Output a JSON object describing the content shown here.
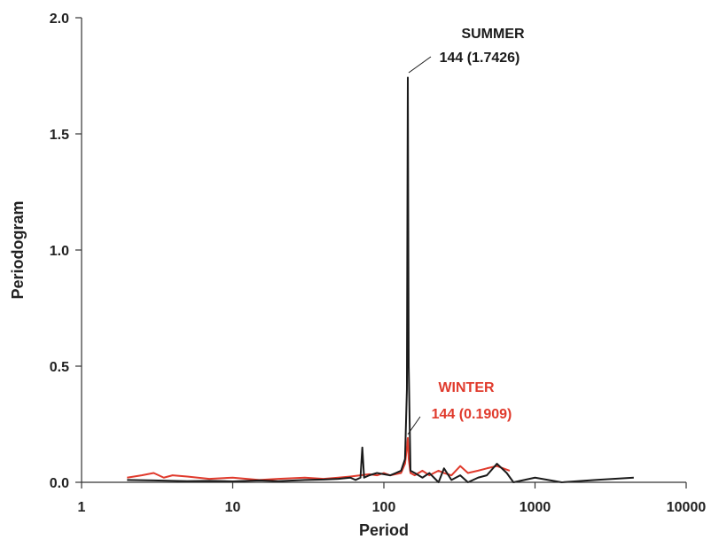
{
  "chart_data": {
    "type": "line",
    "xlabel": "Period",
    "ylabel": "Periodogram",
    "x_scale": "log",
    "xlim": [
      1,
      10000
    ],
    "ylim": [
      0,
      2.0
    ],
    "x_ticks": [
      1,
      10,
      100,
      1000,
      10000
    ],
    "x_tick_labels": [
      "1",
      "10",
      "100",
      "1000",
      "10000"
    ],
    "y_ticks": [
      0,
      0.5,
      1.0,
      1.5,
      2.0
    ],
    "y_tick_labels": [
      "0.0",
      "0.5",
      "1.0",
      "1.5",
      "2.0"
    ],
    "grid": false,
    "series": [
      {
        "name": "SUMMER",
        "color": "#1a1a1a",
        "x": [
          2,
          3,
          4,
          5,
          7,
          10,
          15,
          20,
          30,
          40,
          50,
          60,
          65,
          70,
          72,
          74,
          80,
          90,
          100,
          110,
          120,
          130,
          138,
          142,
          144,
          146,
          150,
          160,
          180,
          200,
          230,
          250,
          280,
          320,
          360,
          420,
          480,
          560,
          650,
          720,
          1000,
          1500,
          2500,
          4500
        ],
        "y": [
          0.01,
          0.008,
          0.006,
          0.005,
          0.006,
          0.004,
          0.008,
          0.005,
          0.01,
          0.012,
          0.015,
          0.02,
          0.01,
          0.02,
          0.15,
          0.02,
          0.03,
          0.04,
          0.035,
          0.03,
          0.04,
          0.05,
          0.1,
          0.4,
          1.7426,
          0.5,
          0.05,
          0.04,
          0.02,
          0.04,
          0.0,
          0.06,
          0.01,
          0.03,
          0.0,
          0.02,
          0.03,
          0.08,
          0.04,
          0.0,
          0.02,
          0.0,
          0.01,
          0.02
        ]
      },
      {
        "name": "WINTER",
        "color": "#e03a2c",
        "x": [
          2,
          2.5,
          3,
          3.5,
          4,
          5,
          7,
          10,
          15,
          20,
          30,
          40,
          50,
          60,
          70,
          80,
          90,
          100,
          110,
          120,
          130,
          138,
          142,
          144,
          146,
          150,
          160,
          180,
          200,
          230,
          250,
          280,
          320,
          360,
          420,
          480,
          560,
          680
        ],
        "y": [
          0.02,
          0.03,
          0.04,
          0.02,
          0.03,
          0.025,
          0.015,
          0.02,
          0.01,
          0.015,
          0.02,
          0.015,
          0.02,
          0.025,
          0.03,
          0.035,
          0.03,
          0.04,
          0.03,
          0.035,
          0.04,
          0.08,
          0.15,
          0.1909,
          0.1,
          0.04,
          0.03,
          0.05,
          0.03,
          0.05,
          0.04,
          0.03,
          0.07,
          0.04,
          0.05,
          0.06,
          0.07,
          0.05
        ]
      }
    ],
    "annotations": [
      {
        "line1": "SUMMER",
        "line2": "144 (1.7426)",
        "x": 144,
        "y": 1.7426,
        "color": "#1a1a1a"
      },
      {
        "line1": "WINTER",
        "line2": "144 (0.1909)",
        "x": 144,
        "y": 0.1909,
        "color": "#e03a2c"
      }
    ]
  }
}
